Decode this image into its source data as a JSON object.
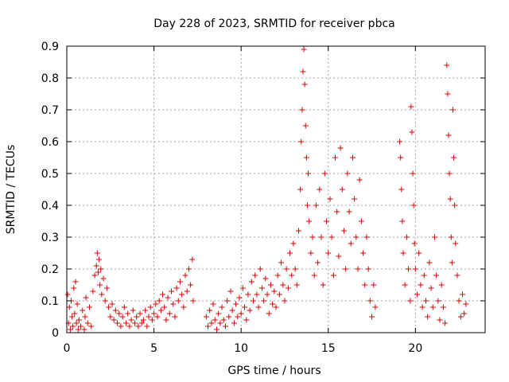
{
  "chart_data": {
    "type": "scatter",
    "title": "Day 228 of 2023, SRMTID for receiver pbca",
    "xlabel": "GPS time / hours",
    "ylabel": "SRMTID / TECUs",
    "xlim": [
      0,
      24
    ],
    "ylim": [
      0,
      0.9
    ],
    "xticks": [
      0,
      5,
      10,
      15,
      20
    ],
    "xtick_labels": [
      "0",
      "5",
      "10",
      "15",
      "20"
    ],
    "yticks": [
      0,
      0.1,
      0.2,
      0.3,
      0.4,
      0.5,
      0.6,
      0.7,
      0.8,
      0.9
    ],
    "ytick_labels": [
      "0",
      "0.1",
      "0.2",
      "0.3",
      "0.4",
      "0.5",
      "0.6",
      "0.7",
      "0.8",
      "0.9"
    ],
    "grid": true,
    "marker": "+",
    "series": [
      {
        "name": "SRMTID",
        "color": "#dd0000",
        "points": [
          [
            0.05,
            0.12
          ],
          [
            0.1,
            0.03
          ],
          [
            0.15,
            0.08
          ],
          [
            0.2,
            0.01
          ],
          [
            0.25,
            0.1
          ],
          [
            0.3,
            0.05
          ],
          [
            0.35,
            0.02
          ],
          [
            0.4,
            0.14
          ],
          [
            0.45,
            0.06
          ],
          [
            0.5,
            0.16
          ],
          [
            0.55,
            0.03
          ],
          [
            0.6,
            0.09
          ],
          [
            0.65,
            0.01
          ],
          [
            0.7,
            0.04
          ],
          [
            0.8,
            0.02
          ],
          [
            0.9,
            0.07
          ],
          [
            1.0,
            0.01
          ],
          [
            1.05,
            0.05
          ],
          [
            1.1,
            0.11
          ],
          [
            1.2,
            0.03
          ],
          [
            1.3,
            0.08
          ],
          [
            1.4,
            0.02
          ],
          [
            1.5,
            0.13
          ],
          [
            1.6,
            0.18
          ],
          [
            1.7,
            0.21
          ],
          [
            1.75,
            0.25
          ],
          [
            1.8,
            0.19
          ],
          [
            1.85,
            0.23
          ],
          [
            1.9,
            0.15
          ],
          [
            1.95,
            0.2
          ],
          [
            2.0,
            0.12
          ],
          [
            2.1,
            0.17
          ],
          [
            2.2,
            0.1
          ],
          [
            2.3,
            0.14
          ],
          [
            2.4,
            0.08
          ],
          [
            2.5,
            0.05
          ],
          [
            2.6,
            0.09
          ],
          [
            2.7,
            0.04
          ],
          [
            2.8,
            0.07
          ],
          [
            2.9,
            0.03
          ],
          [
            3.0,
            0.06
          ],
          [
            3.1,
            0.02
          ],
          [
            3.2,
            0.05
          ],
          [
            3.3,
            0.08
          ],
          [
            3.4,
            0.03
          ],
          [
            3.5,
            0.06
          ],
          [
            3.6,
            0.02
          ],
          [
            3.7,
            0.04
          ],
          [
            3.8,
            0.07
          ],
          [
            3.9,
            0.03
          ],
          [
            4.0,
            0.05
          ],
          [
            4.1,
            0.02
          ],
          [
            4.2,
            0.06
          ],
          [
            4.3,
            0.03
          ],
          [
            4.4,
            0.04
          ],
          [
            4.5,
            0.07
          ],
          [
            4.6,
            0.02
          ],
          [
            4.7,
            0.05
          ],
          [
            4.8,
            0.08
          ],
          [
            4.9,
            0.04
          ],
          [
            5.0,
            0.06
          ],
          [
            5.1,
            0.09
          ],
          [
            5.2,
            0.05
          ],
          [
            5.3,
            0.1
          ],
          [
            5.4,
            0.07
          ],
          [
            5.5,
            0.12
          ],
          [
            5.6,
            0.08
          ],
          [
            5.7,
            0.04
          ],
          [
            5.8,
            0.11
          ],
          [
            5.9,
            0.06
          ],
          [
            6.0,
            0.13
          ],
          [
            6.1,
            0.09
          ],
          [
            6.2,
            0.05
          ],
          [
            6.3,
            0.14
          ],
          [
            6.4,
            0.1
          ],
          [
            6.5,
            0.16
          ],
          [
            6.6,
            0.12
          ],
          [
            6.7,
            0.08
          ],
          [
            6.8,
            0.18
          ],
          [
            6.9,
            0.13
          ],
          [
            7.0,
            0.2
          ],
          [
            7.1,
            0.15
          ],
          [
            7.2,
            0.23
          ],
          [
            7.25,
            0.1
          ],
          [
            8.0,
            0.05
          ],
          [
            8.1,
            0.02
          ],
          [
            8.2,
            0.07
          ],
          [
            8.3,
            0.03
          ],
          [
            8.4,
            0.09
          ],
          [
            8.5,
            0.04
          ],
          [
            8.6,
            0.01
          ],
          [
            8.7,
            0.06
          ],
          [
            8.8,
            0.03
          ],
          [
            8.9,
            0.08
          ],
          [
            9.0,
            0.04
          ],
          [
            9.1,
            0.02
          ],
          [
            9.2,
            0.1
          ],
          [
            9.3,
            0.05
          ],
          [
            9.4,
            0.13
          ],
          [
            9.5,
            0.07
          ],
          [
            9.6,
            0.03
          ],
          [
            9.7,
            0.09
          ],
          [
            9.8,
            0.05
          ],
          [
            9.9,
            0.11
          ],
          [
            10.0,
            0.06
          ],
          [
            10.1,
            0.14
          ],
          [
            10.2,
            0.08
          ],
          [
            10.3,
            0.04
          ],
          [
            10.4,
            0.12
          ],
          [
            10.5,
            0.07
          ],
          [
            10.6,
            0.16
          ],
          [
            10.7,
            0.1
          ],
          [
            10.8,
            0.18
          ],
          [
            10.9,
            0.12
          ],
          [
            11.0,
            0.08
          ],
          [
            11.1,
            0.2
          ],
          [
            11.2,
            0.14
          ],
          [
            11.3,
            0.1
          ],
          [
            11.4,
            0.17
          ],
          [
            11.5,
            0.12
          ],
          [
            11.6,
            0.06
          ],
          [
            11.7,
            0.15
          ],
          [
            11.8,
            0.09
          ],
          [
            11.9,
            0.13
          ],
          [
            12.0,
            0.08
          ],
          [
            12.1,
            0.18
          ],
          [
            12.2,
            0.12
          ],
          [
            12.3,
            0.22
          ],
          [
            12.4,
            0.15
          ],
          [
            12.5,
            0.1
          ],
          [
            12.6,
            0.2
          ],
          [
            12.7,
            0.14
          ],
          [
            12.8,
            0.25
          ],
          [
            12.9,
            0.18
          ],
          [
            13.0,
            0.28
          ],
          [
            13.1,
            0.2
          ],
          [
            13.2,
            0.15
          ],
          [
            13.3,
            0.32
          ],
          [
            13.4,
            0.45
          ],
          [
            13.45,
            0.6
          ],
          [
            13.5,
            0.7
          ],
          [
            13.55,
            0.82
          ],
          [
            13.6,
            0.89
          ],
          [
            13.65,
            0.78
          ],
          [
            13.7,
            0.65
          ],
          [
            13.75,
            0.55
          ],
          [
            13.8,
            0.4
          ],
          [
            13.85,
            0.5
          ],
          [
            13.9,
            0.35
          ],
          [
            14.0,
            0.25
          ],
          [
            14.1,
            0.3
          ],
          [
            14.2,
            0.18
          ],
          [
            14.3,
            0.4
          ],
          [
            14.4,
            0.22
          ],
          [
            14.5,
            0.45
          ],
          [
            14.6,
            0.3
          ],
          [
            14.7,
            0.15
          ],
          [
            14.8,
            0.5
          ],
          [
            14.9,
            0.35
          ],
          [
            15.0,
            0.25
          ],
          [
            15.1,
            0.42
          ],
          [
            15.2,
            0.3
          ],
          [
            15.3,
            0.18
          ],
          [
            15.4,
            0.55
          ],
          [
            15.5,
            0.38
          ],
          [
            15.6,
            0.24
          ],
          [
            15.7,
            0.58
          ],
          [
            15.8,
            0.45
          ],
          [
            15.9,
            0.32
          ],
          [
            16.0,
            0.2
          ],
          [
            16.1,
            0.5
          ],
          [
            16.2,
            0.38
          ],
          [
            16.3,
            0.28
          ],
          [
            16.4,
            0.55
          ],
          [
            16.5,
            0.42
          ],
          [
            16.6,
            0.3
          ],
          [
            16.7,
            0.2
          ],
          [
            16.8,
            0.48
          ],
          [
            16.9,
            0.35
          ],
          [
            17.0,
            0.25
          ],
          [
            17.1,
            0.15
          ],
          [
            17.2,
            0.3
          ],
          [
            17.3,
            0.2
          ],
          [
            17.4,
            0.1
          ],
          [
            17.5,
            0.05
          ],
          [
            17.6,
            0.15
          ],
          [
            17.7,
            0.08
          ],
          [
            19.1,
            0.6
          ],
          [
            19.15,
            0.55
          ],
          [
            19.2,
            0.45
          ],
          [
            19.25,
            0.35
          ],
          [
            19.3,
            0.25
          ],
          [
            19.4,
            0.15
          ],
          [
            19.5,
            0.3
          ],
          [
            19.6,
            0.2
          ],
          [
            19.7,
            0.1
          ],
          [
            19.75,
            0.71
          ],
          [
            19.8,
            0.63
          ],
          [
            19.85,
            0.5
          ],
          [
            19.9,
            0.4
          ],
          [
            19.95,
            0.28
          ],
          [
            20.0,
            0.2
          ],
          [
            20.1,
            0.12
          ],
          [
            20.2,
            0.25
          ],
          [
            20.3,
            0.15
          ],
          [
            20.4,
            0.08
          ],
          [
            20.5,
            0.18
          ],
          [
            20.6,
            0.1
          ],
          [
            20.7,
            0.05
          ],
          [
            20.8,
            0.22
          ],
          [
            20.9,
            0.14
          ],
          [
            21.0,
            0.08
          ],
          [
            21.1,
            0.3
          ],
          [
            21.2,
            0.18
          ],
          [
            21.3,
            0.1
          ],
          [
            21.4,
            0.04
          ],
          [
            21.5,
            0.15
          ],
          [
            21.6,
            0.08
          ],
          [
            21.7,
            0.03
          ],
          [
            21.8,
            0.84
          ],
          [
            21.85,
            0.75
          ],
          [
            21.9,
            0.62
          ],
          [
            21.95,
            0.5
          ],
          [
            22.0,
            0.42
          ],
          [
            22.05,
            0.3
          ],
          [
            22.1,
            0.22
          ],
          [
            22.15,
            0.7
          ],
          [
            22.2,
            0.55
          ],
          [
            22.25,
            0.4
          ],
          [
            22.3,
            0.28
          ],
          [
            22.4,
            0.18
          ],
          [
            22.5,
            0.1
          ],
          [
            22.6,
            0.05
          ],
          [
            22.7,
            0.12
          ],
          [
            22.8,
            0.06
          ],
          [
            22.9,
            0.09
          ]
        ]
      }
    ]
  }
}
